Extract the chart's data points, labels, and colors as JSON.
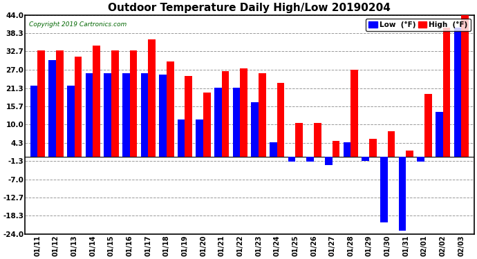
{
  "title": "Outdoor Temperature Daily High/Low 20190204",
  "copyright": "Copyright 2019 Cartronics.com",
  "legend_low": "Low  (°F)",
  "legend_high": "High  (°F)",
  "dates": [
    "01/11",
    "01/12",
    "01/13",
    "01/14",
    "01/15",
    "01/16",
    "01/17",
    "01/18",
    "01/19",
    "01/20",
    "01/21",
    "01/22",
    "01/23",
    "01/24",
    "01/25",
    "01/26",
    "01/27",
    "01/28",
    "01/29",
    "01/30",
    "01/31",
    "02/01",
    "02/02",
    "02/03"
  ],
  "high": [
    33.0,
    33.0,
    31.0,
    34.5,
    33.0,
    33.0,
    36.5,
    29.5,
    25.0,
    20.0,
    26.5,
    27.5,
    26.0,
    23.0,
    10.5,
    10.5,
    5.0,
    27.0,
    5.5,
    8.0,
    2.0,
    19.5,
    40.0,
    44.0
  ],
  "low": [
    22.0,
    30.0,
    22.0,
    26.0,
    26.0,
    26.0,
    26.0,
    25.5,
    11.5,
    11.5,
    21.5,
    21.5,
    17.0,
    4.5,
    -1.5,
    -1.5,
    -2.5,
    4.5,
    -1.3,
    -20.5,
    -23.0,
    -1.5,
    14.0,
    40.0
  ],
  "ylim": [
    -24.0,
    44.0
  ],
  "yticks": [
    -24.0,
    -18.3,
    -12.7,
    -7.0,
    -1.3,
    4.3,
    10.0,
    15.7,
    21.3,
    27.0,
    32.7,
    38.3,
    44.0
  ],
  "high_color": "#FF0000",
  "low_color": "#0000FF",
  "bg_color": "#FFFFFF",
  "grid_color": "#999999",
  "title_fontsize": 11,
  "bar_width": 0.4,
  "figwidth": 6.9,
  "figheight": 3.75,
  "dpi": 100
}
